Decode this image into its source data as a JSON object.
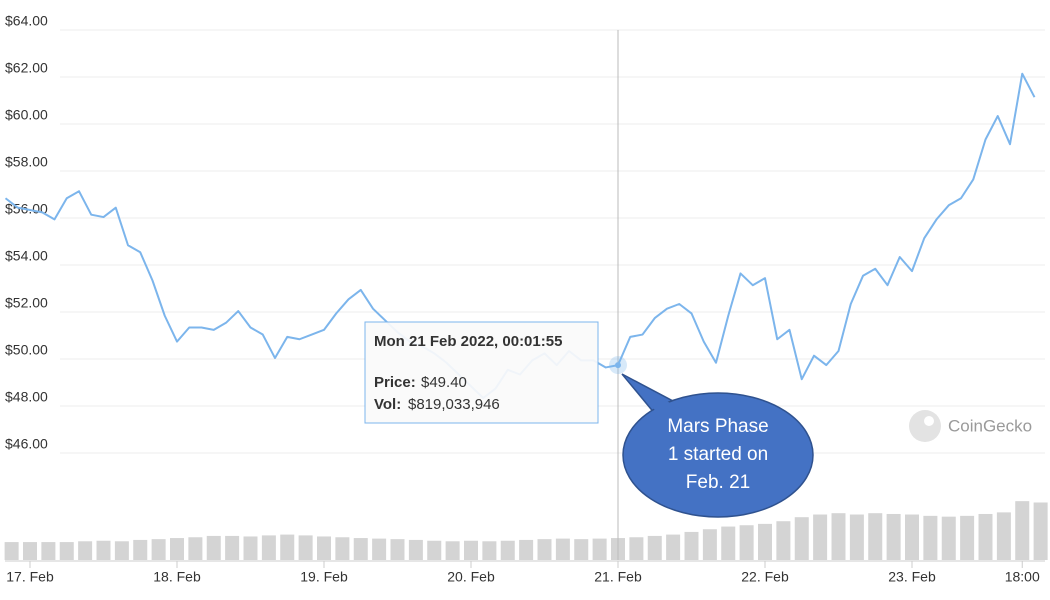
{
  "chart_data": {
    "type": "line",
    "color": "#7cb5ec",
    "x": [
      -4,
      -2,
      0,
      2,
      4,
      6,
      8,
      10,
      12,
      14,
      16,
      18,
      20,
      22,
      24,
      26,
      28,
      30,
      32,
      34,
      36,
      38,
      40,
      42,
      44,
      46,
      48,
      50,
      52,
      54,
      56,
      58,
      60,
      62,
      64,
      66,
      68,
      70,
      72,
      74,
      76,
      78,
      80,
      82,
      84,
      86,
      88,
      90,
      92,
      94,
      96,
      98,
      100,
      102,
      104,
      106,
      108,
      110,
      112,
      114,
      116,
      118,
      120,
      122,
      124,
      126,
      128,
      130,
      132,
      134,
      136,
      138,
      140,
      142,
      144,
      146,
      148,
      150,
      152,
      154,
      156,
      158,
      160,
      162,
      164
    ],
    "values": [
      56.5,
      56.1,
      56.0,
      55.9,
      55.6,
      56.5,
      56.8,
      55.8,
      55.7,
      56.1,
      54.5,
      54.2,
      53.0,
      51.5,
      50.4,
      51.0,
      51.0,
      50.9,
      51.2,
      51.7,
      51.0,
      50.7,
      49.7,
      50.6,
      50.5,
      50.7,
      50.9,
      51.6,
      52.2,
      52.6,
      51.8,
      51.3,
      50.8,
      50.4,
      50.2,
      49.9,
      49.5,
      49.0,
      48.5,
      48.0,
      48.4,
      49.2,
      49.0,
      49.6,
      49.9,
      49.4,
      50.0,
      49.6,
      49.6,
      49.3,
      49.4,
      50.6,
      50.7,
      51.4,
      51.8,
      52.0,
      51.6,
      50.4,
      49.5,
      51.5,
      53.3,
      52.8,
      53.1,
      50.5,
      50.9,
      48.8,
      49.8,
      49.4,
      50.0,
      52.0,
      53.2,
      53.5,
      52.8,
      54.0,
      53.4,
      54.8,
      55.6,
      56.2,
      56.5,
      57.3,
      59.0,
      60.0,
      58.8,
      61.8,
      60.8
    ],
    "xlim": [
      -4,
      166
    ],
    "xticks": [
      {
        "value": 0,
        "label": "17. Feb"
      },
      {
        "value": 24,
        "label": "18. Feb"
      },
      {
        "value": 48,
        "label": "19. Feb"
      },
      {
        "value": 72,
        "label": "20. Feb"
      },
      {
        "value": 96,
        "label": "21. Feb"
      },
      {
        "value": 120,
        "label": "22. Feb"
      },
      {
        "value": 144,
        "label": "23. Feb"
      },
      {
        "value": 162,
        "label": "18:00"
      }
    ],
    "ylim": [
      42,
      64
    ],
    "yticks": [
      {
        "value": 46,
        "label": "$46.00"
      },
      {
        "value": 48,
        "label": "$48.00"
      },
      {
        "value": 50,
        "label": "$50.00"
      },
      {
        "value": 52,
        "label": "$52.00"
      },
      {
        "value": 54,
        "label": "$54.00"
      },
      {
        "value": 56,
        "label": "$56.00"
      },
      {
        "value": 58,
        "label": "$58.00"
      },
      {
        "value": 60,
        "label": "$60.00"
      },
      {
        "value": 62,
        "label": "$62.00"
      },
      {
        "value": 64,
        "label": "$64.00"
      }
    ],
    "grid": true,
    "volume": {
      "color": "#d4d4d4",
      "y2lim": [
        0,
        4000000000
      ],
      "x": [
        -3,
        0,
        3,
        6,
        9,
        12,
        15,
        18,
        21,
        24,
        27,
        30,
        33,
        36,
        39,
        42,
        45,
        48,
        51,
        54,
        57,
        60,
        63,
        66,
        69,
        72,
        75,
        78,
        81,
        84,
        87,
        90,
        93,
        96,
        99,
        102,
        105,
        108,
        111,
        114,
        117,
        120,
        123,
        126,
        129,
        132,
        135,
        138,
        141,
        144,
        147,
        150,
        153,
        156,
        159,
        162,
        165
      ],
      "values": [
        670000000,
        670000000,
        670000000,
        670000000,
        700000000,
        720000000,
        700000000,
        750000000,
        780000000,
        820000000,
        850000000,
        900000000,
        900000000,
        880000000,
        920000000,
        950000000,
        920000000,
        880000000,
        850000000,
        820000000,
        800000000,
        780000000,
        750000000,
        720000000,
        700000000,
        720000000,
        700000000,
        720000000,
        750000000,
        780000000,
        800000000,
        780000000,
        800000000,
        820000000,
        850000000,
        900000000,
        950000000,
        1050000000,
        1150000000,
        1250000000,
        1300000000,
        1350000000,
        1450000000,
        1600000000,
        1700000000,
        1750000000,
        1700000000,
        1750000000,
        1720000000,
        1700000000,
        1650000000,
        1620000000,
        1650000000,
        1720000000,
        1780000000,
        2200000000,
        2150000000
      ]
    },
    "tooltip": {
      "title": "Mon 21 Feb 2022, 00:01:55",
      "price_label": "Price:",
      "price": "$49.40",
      "vol_label": "Vol:",
      "vol": "$819,033,946",
      "index": 50
    },
    "callout": [
      "Mars Phase",
      "1 started on",
      "Feb. 21"
    ],
    "watermark": "CoinGecko"
  }
}
